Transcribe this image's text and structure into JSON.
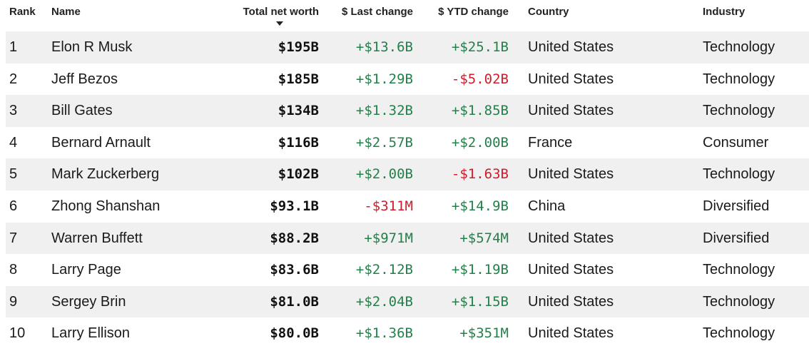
{
  "columns": {
    "rank": "Rank",
    "name": "Name",
    "net_worth": "Total net worth",
    "last_change": "$ Last change",
    "ytd_change": "$ YTD change",
    "country": "Country",
    "industry": "Industry"
  },
  "sort": {
    "column": "net_worth",
    "direction": "descending",
    "icon": "sort-down-icon"
  },
  "colors": {
    "positive": "#23804a",
    "negative": "#cf1d2b",
    "row_shade": "#f0f0f0"
  },
  "rows": [
    {
      "rank": "1",
      "name": "Elon R Musk",
      "net_worth": "$195B",
      "last_change": "+$13.6B",
      "ytd_change": "+$25.1B",
      "country": "United States",
      "industry": "Technology"
    },
    {
      "rank": "2",
      "name": "Jeff Bezos",
      "net_worth": "$185B",
      "last_change": "+$1.29B",
      "ytd_change": "-$5.02B",
      "country": "United States",
      "industry": "Technology"
    },
    {
      "rank": "3",
      "name": "Bill Gates",
      "net_worth": "$134B",
      "last_change": "+$1.32B",
      "ytd_change": "+$1.85B",
      "country": "United States",
      "industry": "Technology"
    },
    {
      "rank": "4",
      "name": "Bernard Arnault",
      "net_worth": "$116B",
      "last_change": "+$2.57B",
      "ytd_change": "+$2.00B",
      "country": "France",
      "industry": "Consumer"
    },
    {
      "rank": "5",
      "name": "Mark Zuckerberg",
      "net_worth": "$102B",
      "last_change": "+$2.00B",
      "ytd_change": "-$1.63B",
      "country": "United States",
      "industry": "Technology"
    },
    {
      "rank": "6",
      "name": "Zhong Shanshan",
      "net_worth": "$93.1B",
      "last_change": "-$311M",
      "ytd_change": "+$14.9B",
      "country": "China",
      "industry": "Diversified"
    },
    {
      "rank": "7",
      "name": "Warren Buffett",
      "net_worth": "$88.2B",
      "last_change": "+$971M",
      "ytd_change": "+$574M",
      "country": "United States",
      "industry": "Diversified"
    },
    {
      "rank": "8",
      "name": "Larry Page",
      "net_worth": "$83.6B",
      "last_change": "+$2.12B",
      "ytd_change": "+$1.19B",
      "country": "United States",
      "industry": "Technology"
    },
    {
      "rank": "9",
      "name": "Sergey Brin",
      "net_worth": "$81.0B",
      "last_change": "+$2.04B",
      "ytd_change": "+$1.15B",
      "country": "United States",
      "industry": "Technology"
    },
    {
      "rank": "10",
      "name": "Larry Ellison",
      "net_worth": "$80.0B",
      "last_change": "+$1.36B",
      "ytd_change": "+$351M",
      "country": "United States",
      "industry": "Technology"
    }
  ]
}
